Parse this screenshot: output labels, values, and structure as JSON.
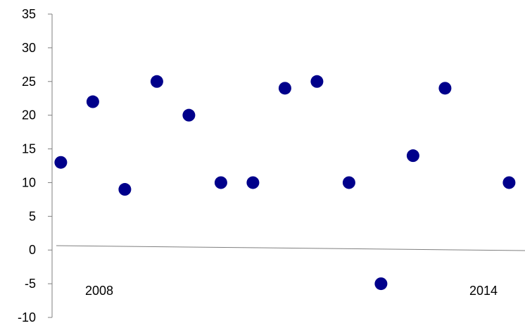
{
  "chart_data": {
    "type": "scatter",
    "title": "",
    "xlabel": "",
    "ylabel": "",
    "ylim": [
      -10,
      35
    ],
    "y_ticks": [
      35,
      30,
      25,
      20,
      15,
      10,
      5,
      0,
      -5,
      -10
    ],
    "y_tick_labels": [
      "35",
      "30",
      "25",
      "20",
      "15",
      "10",
      "5",
      "0",
      "-5",
      "-10"
    ],
    "x_tick_labels": [
      {
        "label": "2008",
        "x": 2008
      },
      {
        "label": "2014",
        "x": 2014
      }
    ],
    "grid": false,
    "marker_color": "#00008b",
    "axis_color": "#7f7f7f",
    "series": [
      {
        "points": [
          {
            "x": 2007.4,
            "y": 13
          },
          {
            "x": 2007.9,
            "y": 22
          },
          {
            "x": 2008.4,
            "y": 9
          },
          {
            "x": 2008.9,
            "y": 25
          },
          {
            "x": 2009.4,
            "y": 20
          },
          {
            "x": 2009.9,
            "y": 10
          },
          {
            "x": 2010.4,
            "y": 10
          },
          {
            "x": 2010.9,
            "y": 24
          },
          {
            "x": 2011.4,
            "y": 25
          },
          {
            "x": 2011.9,
            "y": 10
          },
          {
            "x": 2012.4,
            "y": -5
          },
          {
            "x": 2012.9,
            "y": 14
          },
          {
            "x": 2013.4,
            "y": 24
          },
          {
            "x": 2014.4,
            "y": 10
          }
        ]
      }
    ]
  }
}
